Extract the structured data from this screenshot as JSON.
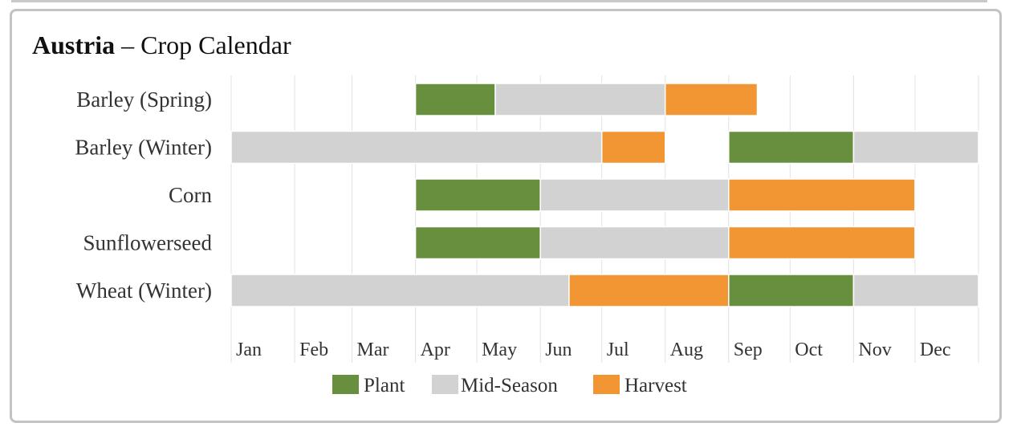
{
  "title": {
    "country": "Austria",
    "separator": "–",
    "subtitle": "Crop Calendar"
  },
  "colors": {
    "plant": "#678f3d",
    "mid_season": "#d3d2d3",
    "harvest": "#f19633",
    "gridline": "#e2e2e2",
    "text": "#333333"
  },
  "chart_data": {
    "type": "gantt",
    "title": "Austria – Crop Calendar",
    "months": [
      "Jan",
      "Feb",
      "Mar",
      "Apr",
      "May",
      "Jun",
      "Jul",
      "Aug",
      "Sep",
      "Oct",
      "Nov",
      "Dec"
    ],
    "x_range": [
      "Jan 1",
      "Dec 31"
    ],
    "grid": true,
    "legend_position": "bottom-center",
    "legend": [
      {
        "key": "plant",
        "label": "Plant"
      },
      {
        "key": "mid_season",
        "label": "Mid-Season"
      },
      {
        "key": "harvest",
        "label": "Harvest"
      }
    ],
    "crops": [
      {
        "name": "Barley (Spring)",
        "segments": [
          {
            "phase": "plant",
            "start": "Apr 1",
            "end": "May 10"
          },
          {
            "phase": "mid_season",
            "start": "May 10",
            "end": "Aug 1"
          },
          {
            "phase": "harvest",
            "start": "Aug 1",
            "end": "Sep 15"
          }
        ]
      },
      {
        "name": "Barley (Winter)",
        "segments": [
          {
            "phase": "mid_season",
            "start": "Jan 1",
            "end": "Jul 1"
          },
          {
            "phase": "harvest",
            "start": "Jul 1",
            "end": "Aug 1"
          },
          {
            "phase": "plant",
            "start": "Sep 1",
            "end": "Nov 1"
          },
          {
            "phase": "mid_season",
            "start": "Nov 1",
            "end": "Dec 31"
          }
        ]
      },
      {
        "name": "Corn",
        "segments": [
          {
            "phase": "plant",
            "start": "Apr 1",
            "end": "Jun 1"
          },
          {
            "phase": "mid_season",
            "start": "Jun 1",
            "end": "Sep 1"
          },
          {
            "phase": "harvest",
            "start": "Sep 1",
            "end": "Dec 1"
          }
        ]
      },
      {
        "name": "Sunflowerseed",
        "segments": [
          {
            "phase": "plant",
            "start": "Apr 1",
            "end": "Jun 1"
          },
          {
            "phase": "mid_season",
            "start": "Jun 1",
            "end": "Sep 1"
          },
          {
            "phase": "harvest",
            "start": "Sep 1",
            "end": "Dec 1"
          }
        ]
      },
      {
        "name": "Wheat (Winter)",
        "segments": [
          {
            "phase": "mid_season",
            "start": "Jan 1",
            "end": "Jun 15"
          },
          {
            "phase": "harvest",
            "start": "Jun 15",
            "end": "Sep 1"
          },
          {
            "phase": "plant",
            "start": "Sep 1",
            "end": "Nov 1"
          },
          {
            "phase": "mid_season",
            "start": "Nov 1",
            "end": "Dec 31"
          }
        ]
      }
    ]
  }
}
